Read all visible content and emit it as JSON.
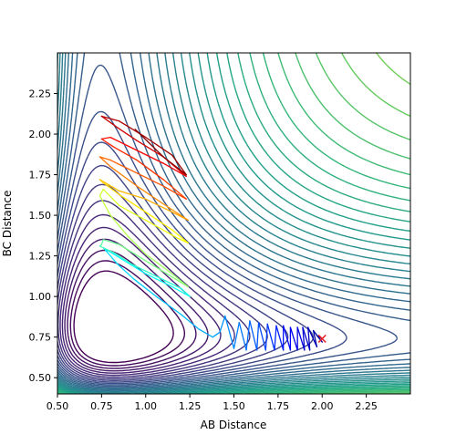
{
  "chart_data": {
    "type": "contour",
    "title": "",
    "xlabel": "AB Distance",
    "ylabel": "BC Distance",
    "xlim": [
      0.5,
      2.5
    ],
    "ylim": [
      0.4,
      2.5
    ],
    "xticks": [
      "0.50",
      "0.75",
      "1.00",
      "1.25",
      "1.50",
      "1.75",
      "2.00",
      "2.25"
    ],
    "yticks": [
      "0.50",
      "0.75",
      "1.00",
      "1.25",
      "1.50",
      "1.75",
      "2.00",
      "2.25"
    ],
    "xtick_values": [
      0.5,
      0.75,
      1.0,
      1.25,
      1.5,
      1.75,
      2.0,
      2.25
    ],
    "ytick_values": [
      0.5,
      0.75,
      1.0,
      1.25,
      1.5,
      1.75,
      2.0,
      2.25
    ],
    "grid": false,
    "colormap_contours": "viridis",
    "colormap_trajectory": "jet",
    "start_marker": {
      "shape": "x",
      "color": "#e8202a",
      "x": 2.0,
      "y": 0.74
    },
    "trajectory": [
      [
        2.0,
        0.74
      ],
      [
        1.97,
        0.76
      ],
      [
        2.0,
        0.72
      ],
      [
        1.95,
        0.79
      ],
      [
        1.97,
        0.69
      ],
      [
        1.92,
        0.81
      ],
      [
        1.93,
        0.67
      ],
      [
        1.89,
        0.81
      ],
      [
        1.9,
        0.67
      ],
      [
        1.86,
        0.81
      ],
      [
        1.86,
        0.67
      ],
      [
        1.82,
        0.81
      ],
      [
        1.82,
        0.67
      ],
      [
        1.78,
        0.82
      ],
      [
        1.78,
        0.67
      ],
      [
        1.74,
        0.82
      ],
      [
        1.73,
        0.67
      ],
      [
        1.69,
        0.83
      ],
      [
        1.68,
        0.67
      ],
      [
        1.64,
        0.84
      ],
      [
        1.63,
        0.67
      ],
      [
        1.59,
        0.85
      ],
      [
        1.57,
        0.67
      ],
      [
        1.53,
        0.84
      ],
      [
        1.5,
        0.68
      ],
      [
        1.45,
        0.88
      ],
      [
        1.42,
        0.78
      ],
      [
        1.38,
        0.75
      ],
      [
        1.3,
        0.8
      ],
      [
        1.2,
        0.89
      ],
      [
        1.06,
        1.0
      ],
      [
        0.93,
        1.11
      ],
      [
        0.84,
        1.2
      ],
      [
        0.76,
        1.3
      ],
      [
        0.82,
        1.26
      ],
      [
        1.0,
        1.14
      ],
      [
        1.15,
        1.06
      ],
      [
        1.25,
        1.0
      ],
      [
        1.2,
        1.05
      ],
      [
        1.05,
        1.13
      ],
      [
        0.92,
        1.2
      ],
      [
        0.82,
        1.27
      ],
      [
        0.74,
        1.31
      ],
      [
        0.75,
        1.32
      ],
      [
        0.76,
        1.35
      ],
      [
        0.85,
        1.32
      ],
      [
        1.0,
        1.22
      ],
      [
        1.15,
        1.12
      ],
      [
        1.24,
        1.06
      ],
      [
        1.15,
        1.14
      ],
      [
        1.0,
        1.26
      ],
      [
        0.9,
        1.37
      ],
      [
        0.8,
        1.5
      ],
      [
        0.74,
        1.62
      ],
      [
        0.76,
        1.66
      ],
      [
        0.85,
        1.56
      ],
      [
        1.0,
        1.47
      ],
      [
        1.18,
        1.36
      ],
      [
        1.24,
        1.33
      ],
      [
        1.15,
        1.41
      ],
      [
        1.0,
        1.52
      ],
      [
        0.86,
        1.62
      ],
      [
        0.76,
        1.7
      ],
      [
        0.74,
        1.72
      ],
      [
        0.85,
        1.65
      ],
      [
        1.0,
        1.6
      ],
      [
        1.15,
        1.52
      ],
      [
        1.24,
        1.47
      ],
      [
        1.1,
        1.57
      ],
      [
        0.95,
        1.68
      ],
      [
        0.8,
        1.8
      ],
      [
        0.74,
        1.86
      ],
      [
        0.8,
        1.84
      ],
      [
        0.95,
        1.76
      ],
      [
        1.1,
        1.68
      ],
      [
        1.23,
        1.6
      ],
      [
        1.1,
        1.72
      ],
      [
        0.95,
        1.84
      ],
      [
        0.82,
        1.92
      ],
      [
        0.75,
        1.97
      ],
      [
        0.8,
        1.98
      ],
      [
        0.95,
        1.9
      ],
      [
        1.1,
        1.82
      ],
      [
        1.23,
        1.74
      ],
      [
        1.1,
        1.86
      ],
      [
        0.95,
        1.96
      ],
      [
        0.84,
        2.04
      ],
      [
        0.75,
        2.11
      ],
      [
        0.85,
        2.08
      ],
      [
        1.0,
        1.98
      ],
      [
        1.15,
        1.87
      ],
      [
        1.23,
        1.75
      ],
      [
        1.1,
        1.86
      ],
      [
        0.94,
        2.03
      ]
    ]
  }
}
